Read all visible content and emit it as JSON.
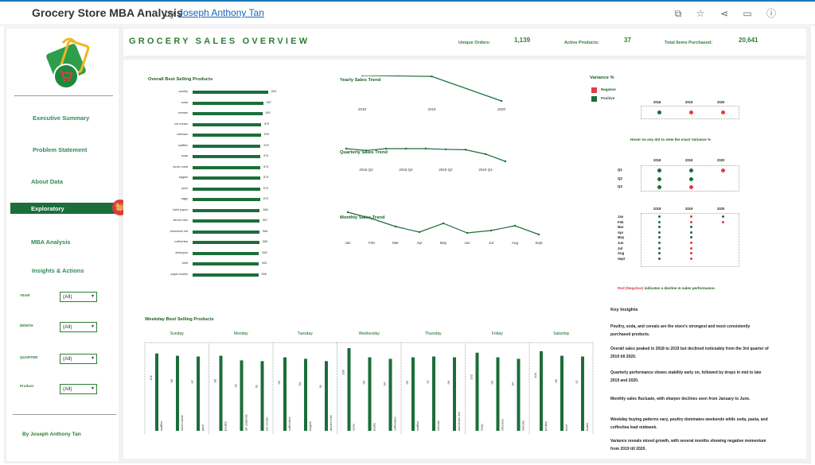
{
  "app": {
    "title": "Grocery Store MBA Analysis",
    "by": "by",
    "author": "Joseph Anthony Tan"
  },
  "toolbar_icons": [
    "copy-icon",
    "star-icon",
    "share-icon",
    "comment-icon",
    "info-icon"
  ],
  "sidebar": {
    "items": [
      "Executive Summary",
      "Problem Statement",
      "About Data",
      "Exploratory",
      "MBA Analysis",
      "Insights & Actions"
    ],
    "active": "Exploratory",
    "filters": [
      {
        "label": "YEAR",
        "value": "(All)"
      },
      {
        "label": "MONTH",
        "value": "(All)"
      },
      {
        "label": "QUARTER",
        "value": "(All)"
      },
      {
        "label": "Product",
        "value": "(All)"
      }
    ],
    "signature": "By Joseph Anthony Tan"
  },
  "header": {
    "title": "GROCERY SALES OVERVIEW",
    "kpis": [
      {
        "label": "Unique Orders:",
        "value": "1,139"
      },
      {
        "label": "Active Products:",
        "value": "37"
      },
      {
        "label": "Total Items Purchased:",
        "value": "20,641"
      }
    ]
  },
  "chart_data": [
    {
      "type": "bar",
      "title": "Overall Best Selling Products",
      "categories": [
        "poultry",
        "soda",
        "cereals",
        "ice cream",
        "cheeses",
        "waffles",
        "soap",
        "lunch meat",
        "bagels",
        "juice",
        "eggs",
        "toilet paper",
        "dinner rolls",
        "aluminum foil",
        "coffee/tea",
        "shampoo",
        "beef",
        "paper towels"
      ],
      "values": [
        640,
        597,
        591,
        579,
        578,
        575,
        574,
        573,
        573,
        570,
        570,
        569,
        567,
        566,
        565,
        562,
        561,
        556
      ]
    },
    {
      "type": "line",
      "title": "Yearly Sales Trend",
      "x": [
        "2018",
        "2019",
        "2020"
      ],
      "y": [
        8.0,
        7.9,
        5.2
      ]
    },
    {
      "type": "line",
      "title": "Quarterly Sales Trend",
      "x": [
        "2018 Q1",
        "2018 Q2",
        "2018 Q3",
        "2018 Q4",
        "2019 Q1",
        "2019 Q2",
        "2019 Q3",
        "2019 Q4",
        "2020 Q1"
      ],
      "y": [
        1.9,
        1.85,
        1.9,
        1.9,
        1.9,
        1.88,
        1.87,
        1.75,
        1.55
      ],
      "ticks": [
        "2018 Q2",
        "2018 Q4",
        "2019 Q2",
        "2019 Q4"
      ]
    },
    {
      "type": "line",
      "title": "Monthly Sales Trend",
      "x": [
        "Jan",
        "Feb",
        "Mar",
        "Apr",
        "May",
        "Jun",
        "Jul",
        "Aug",
        "Sept"
      ],
      "y": [
        1.0,
        0.92,
        0.82,
        0.75,
        0.86,
        0.74,
        0.77,
        0.83,
        0.72
      ]
    },
    {
      "type": "bar",
      "title": "Weekday Best Selling Products",
      "groups": [
        {
          "day": "Sunday",
          "items": [
            {
              "name": "waffles",
              "value": 101
            },
            {
              "name": "lunch meat",
              "value": 98
            },
            {
              "name": "juice",
              "value": 97
            }
          ]
        },
        {
          "day": "Monday",
          "items": [
            {
              "name": "poultry",
              "value": 98
            },
            {
              "name": "all- purpose",
              "value": 92
            },
            {
              "name": "ice cream",
              "value": 91
            }
          ]
        },
        {
          "day": "Tuesday",
          "items": [
            {
              "name": "coffee/tea",
              "value": 96
            },
            {
              "name": "bagels",
              "value": 94
            },
            {
              "name": "dinner rolls",
              "value": 91
            }
          ]
        },
        {
          "day": "Wednesday",
          "items": [
            {
              "name": "soda",
              "value": 108
            },
            {
              "name": "pasta",
              "value": 96
            },
            {
              "name": "coffee/tea",
              "value": 94
            }
          ]
        },
        {
          "day": "Thursday",
          "items": [
            {
              "name": "waffles",
              "value": 96
            },
            {
              "name": "cereals",
              "value": 97
            },
            {
              "name": "aluminum foil",
              "value": 96
            }
          ]
        },
        {
          "day": "Friday",
          "items": [
            {
              "name": "soap",
              "value": 102
            },
            {
              "name": "cheeses",
              "value": 96
            },
            {
              "name": "cereals",
              "value": 94
            }
          ]
        },
        {
          "day": "Saturday",
          "items": [
            {
              "name": "poultry",
              "value": 104
            },
            {
              "name": "beef",
              "value": 98
            },
            {
              "name": "butter",
              "value": 97
            }
          ]
        }
      ]
    }
  ],
  "variance": {
    "title": "Variance %",
    "legend": [
      {
        "label": "Negative",
        "color": "#e53945"
      },
      {
        "label": "Positive",
        "color": "#1b6e3a"
      }
    ],
    "years": [
      "2018",
      "2019",
      "2020"
    ],
    "yearly": [
      "pos",
      "neg",
      "neg"
    ],
    "hover": "Hover on any dot to view the exact Variance %",
    "quarters": [
      {
        "q": "Q1",
        "v": [
          "pos",
          "pos",
          "neg"
        ]
      },
      {
        "q": "Q2",
        "v": [
          "pos",
          "pos",
          ""
        ]
      },
      {
        "q": "Q3",
        "v": [
          "pos",
          "neg",
          ""
        ]
      }
    ],
    "months": [
      {
        "m": "Jan",
        "v": [
          "pos",
          "neg",
          "pos"
        ]
      },
      {
        "m": "Feb",
        "v": [
          "pos",
          "neg",
          "neg"
        ]
      },
      {
        "m": "Mar",
        "v": [
          "pos",
          "pos",
          ""
        ]
      },
      {
        "m": "Apr",
        "v": [
          "pos",
          "pos",
          ""
        ]
      },
      {
        "m": "May",
        "v": [
          "pos",
          "pos",
          ""
        ]
      },
      {
        "m": "Jun",
        "v": [
          "pos",
          "neg",
          ""
        ]
      },
      {
        "m": "Jul",
        "v": [
          "pos",
          "neg",
          ""
        ]
      },
      {
        "m": "Aug",
        "v": [
          "pos",
          "neg",
          ""
        ]
      },
      {
        "m": "Sept",
        "v": [
          "pos",
          "neg",
          ""
        ]
      }
    ],
    "note_red": "Red (Negative)",
    "note_rest": " indicates a decline in sales performance."
  },
  "insights": {
    "title": "Key Insights",
    "items": [
      "Poultry, soda, and cereals are the store's strongest and most consistently purchased products.",
      "Overall sales peaked in 2018 to 2019 but declined noticeably from the 3rd quarter of 2019 till 2020.",
      "Quarterly performance shows stability early on, followed by drops in mid to late 2019 and 2020.",
      "Monthly sales fluctuate, with sharper declines seen from January to June.",
      "Weekday buying patterns vary, poultry dominates weekends while soda, pasta, and coffee/tea lead midweek.",
      "Variance reveals mixed growth, with several months showing negative momentum from 2019 till 2020."
    ]
  },
  "colors": {
    "green": "#1b6e3a",
    "red": "#e53945",
    "accent": "#2e7d32"
  }
}
